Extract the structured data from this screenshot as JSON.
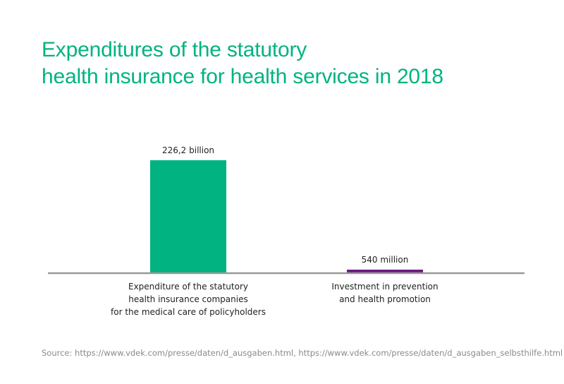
{
  "title": {
    "line1": "Expenditures of the statutory",
    "line2": "health insurance for health services in 2018"
  },
  "chart_data": {
    "type": "bar",
    "categories": [
      [
        "Expenditure of the statutory",
        "health insurance companies",
        "for the medical care of policyholders"
      ],
      [
        "Investment in prevention",
        "and health promotion"
      ]
    ],
    "values": [
      226.2,
      0.54
    ],
    "unit": "billion",
    "data_labels": [
      "226,2 billion",
      "540 million"
    ],
    "bar_colors": [
      "#00b380",
      "#6a1b7f"
    ],
    "axis_color": "#9a9a9a",
    "ylim": [
      0,
      226.2
    ],
    "grid": false,
    "legend": "none"
  },
  "source": {
    "label": "Source:",
    "urls": "https://www.vdek.com/presse/daten/d_ausgaben.html, https://www.vdek.com/presse/daten/d_ausgaben_selbsthilfe.html"
  }
}
